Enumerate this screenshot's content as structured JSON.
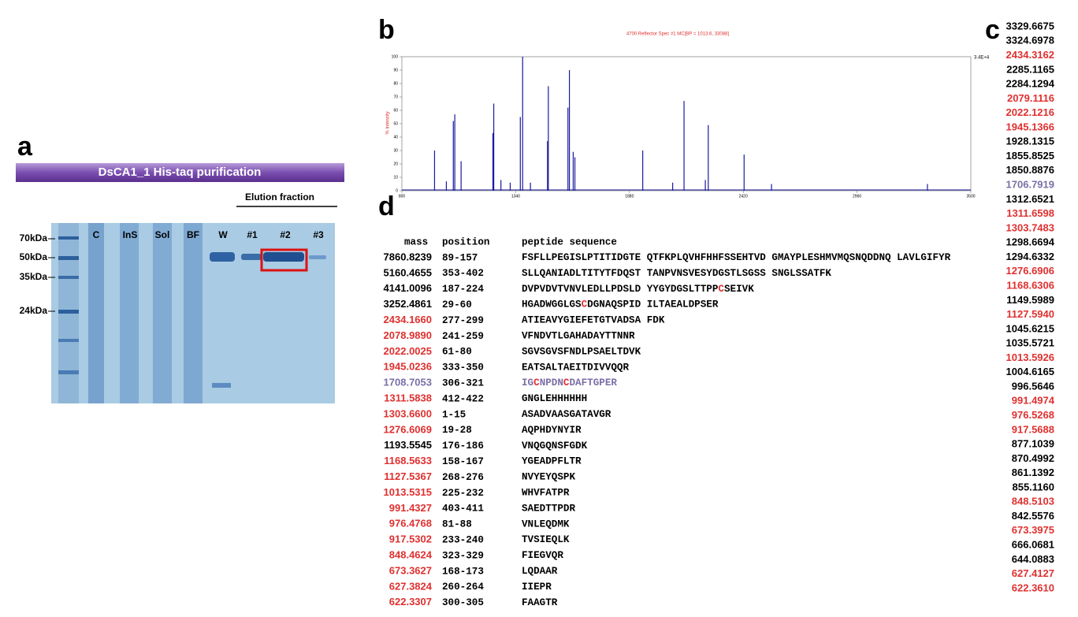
{
  "panel_a": {
    "label": "a",
    "title": "DsCA1_1 His-taq purification",
    "group_label": "Elution fraction",
    "lanes": [
      "C",
      "InS",
      "Sol",
      "BF",
      "W",
      "#1",
      "#2",
      "#3"
    ],
    "markers": [
      "70kDa",
      "50kDa",
      "35kDa",
      "24kDa"
    ]
  },
  "panel_b": {
    "label": "b",
    "type": "spectrum",
    "title": "4700 Reflector Spec #1 MC[BP = 1013.6, 33088]",
    "y_label": "% Intensity",
    "max_label": "3.4E+4",
    "color": "#1a1aa0",
    "xlim": [
      800,
      3500
    ],
    "xticks": [
      800,
      1340,
      1880,
      2420,
      2960,
      3500
    ],
    "ylim": [
      0,
      100
    ],
    "yticks": [
      0,
      10,
      20,
      30,
      40,
      50,
      60,
      70,
      80,
      90,
      100
    ],
    "peaks": [
      {
        "x": 955,
        "y": 30
      },
      {
        "x": 1011,
        "y": 7
      },
      {
        "x": 1044,
        "y": 52
      },
      {
        "x": 1051,
        "y": 57
      },
      {
        "x": 1081,
        "y": 22
      },
      {
        "x": 1232,
        "y": 43
      },
      {
        "x": 1236,
        "y": 65
      },
      {
        "x": 1270,
        "y": 8
      },
      {
        "x": 1314,
        "y": 6
      },
      {
        "x": 1362,
        "y": 55
      },
      {
        "x": 1373,
        "y": 100
      },
      {
        "x": 1410,
        "y": 6
      },
      {
        "x": 1491,
        "y": 37
      },
      {
        "x": 1495,
        "y": 78
      },
      {
        "x": 1588,
        "y": 62
      },
      {
        "x": 1595,
        "y": 90
      },
      {
        "x": 1613,
        "y": 29
      },
      {
        "x": 1621,
        "y": 25
      },
      {
        "x": 1943,
        "y": 30
      },
      {
        "x": 2085,
        "y": 6
      },
      {
        "x": 2139,
        "y": 67
      },
      {
        "x": 2240,
        "y": 8
      },
      {
        "x": 2254,
        "y": 49
      },
      {
        "x": 2424,
        "y": 27
      },
      {
        "x": 2554,
        "y": 5
      },
      {
        "x": 3294,
        "y": 5
      }
    ]
  },
  "panel_c": {
    "label": "c",
    "masses": [
      {
        "text": "3329.6675",
        "color": "black"
      },
      {
        "text": "3324.6978",
        "color": "black"
      },
      {
        "text": "2434.3162",
        "color": "red"
      },
      {
        "text": "2285.1165",
        "color": "black"
      },
      {
        "text": "2284.1294",
        "color": "black"
      },
      {
        "text": "2079.1116",
        "color": "red"
      },
      {
        "text": "2022.1216",
        "color": "red"
      },
      {
        "text": "1945.1366",
        "color": "red"
      },
      {
        "text": "1928.1315",
        "color": "black"
      },
      {
        "text": "1855.8525",
        "color": "black"
      },
      {
        "text": "1850.8876",
        "color": "black"
      },
      {
        "text": "1706.7919",
        "color": "purple"
      },
      {
        "text": "1312.6521",
        "color": "black"
      },
      {
        "text": "1311.6598",
        "color": "red"
      },
      {
        "text": "1303.7483",
        "color": "red"
      },
      {
        "text": "1298.6694",
        "color": "black"
      },
      {
        "text": "1294.6332",
        "color": "black"
      },
      {
        "text": "1276.6906",
        "color": "red"
      },
      {
        "text": "1168.6306",
        "color": "red"
      },
      {
        "text": "1149.5989",
        "color": "black"
      },
      {
        "text": "1127.5940",
        "color": "red"
      },
      {
        "text": "1045.6215",
        "color": "black"
      },
      {
        "text": "1035.5721",
        "color": "black"
      },
      {
        "text": "1013.5926",
        "color": "red"
      },
      {
        "text": "1004.6165",
        "color": "black"
      },
      {
        "text": "996.5646",
        "color": "black"
      },
      {
        "text": "991.4974",
        "color": "red"
      },
      {
        "text": "976.5268",
        "color": "red"
      },
      {
        "text": "917.5688",
        "color": "red"
      },
      {
        "text": "877.1039",
        "color": "black"
      },
      {
        "text": "870.4992",
        "color": "black"
      },
      {
        "text": "861.1392",
        "color": "black"
      },
      {
        "text": "855.1160",
        "color": "black"
      },
      {
        "text": "848.5103",
        "color": "red"
      },
      {
        "text": "842.5576",
        "color": "black"
      },
      {
        "text": "673.3975",
        "color": "red"
      },
      {
        "text": "666.0681",
        "color": "black"
      },
      {
        "text": "644.0883",
        "color": "black"
      },
      {
        "text": "627.4127",
        "color": "red"
      },
      {
        "text": "622.3610",
        "color": "red"
      }
    ]
  },
  "panel_d": {
    "label": "d",
    "headers": [
      "mass",
      "position",
      "peptide sequence"
    ],
    "rows": [
      {
        "mass": "7860.8239",
        "color": "black",
        "position": "89-157",
        "sequence": [
          {
            "text": "FSFLLPEGISLPTITIDGTE QTFKPLQVHFHHFSSEHTVD GMAYPLESHMVMQSNQDDNQ LAVLGIFYR",
            "color": "black"
          }
        ]
      },
      {
        "mass": "5160.4655",
        "color": "black",
        "position": "353-402",
        "sequence": [
          {
            "text": "SLLQANIADLTITYTFDQST TANPVNSVESYDGSTLSGSS SNGLSSATFK",
            "color": "black"
          }
        ]
      },
      {
        "mass": "4141.0096",
        "color": "black",
        "position": "187-224",
        "sequence": [
          {
            "text": "DVPVDVTVNVLEDLLPDSLD YYGYDGSLTTPP",
            "color": "black"
          },
          {
            "text": "C",
            "color": "red"
          },
          {
            "text": "SEIVK",
            "color": "black"
          }
        ]
      },
      {
        "mass": "3252.4861",
        "color": "black",
        "position": "29-60",
        "sequence": [
          {
            "text": "HGADWGGLGS",
            "color": "black"
          },
          {
            "text": "C",
            "color": "red"
          },
          {
            "text": "DGNAQSPID ILTAEALDPSER",
            "color": "black"
          }
        ]
      },
      {
        "mass": "2434.1660",
        "color": "red",
        "position": "277-299",
        "sequence": [
          {
            "text": "ATIEAVYGIEFETGTVADSA FDK",
            "color": "black"
          }
        ]
      },
      {
        "mass": "2078.9890",
        "color": "red",
        "position": "241-259",
        "sequence": [
          {
            "text": "VFNDVTLGAHADAYTTNNR",
            "color": "black"
          }
        ]
      },
      {
        "mass": "2022.0025",
        "color": "red",
        "position": "61-80",
        "sequence": [
          {
            "text": "SGVSGVSFNDLPSAELTDVK",
            "color": "black"
          }
        ]
      },
      {
        "mass": "1945.0236",
        "color": "red",
        "position": "333-350",
        "sequence": [
          {
            "text": "EATSALTAEITDIVVQQR",
            "color": "black"
          }
        ]
      },
      {
        "mass": "1708.7053",
        "color": "purple",
        "position": "306-321",
        "sequence": [
          {
            "text": "IG",
            "color": "purple"
          },
          {
            "text": "C",
            "color": "red"
          },
          {
            "text": "NPDN",
            "color": "purple"
          },
          {
            "text": "C",
            "color": "red"
          },
          {
            "text": "DAFTGPER",
            "color": "purple"
          }
        ]
      },
      {
        "mass": "1311.5838",
        "color": "red",
        "position": "412-422",
        "sequence": [
          {
            "text": "GNGLEHHHHHH",
            "color": "black"
          }
        ]
      },
      {
        "mass": "1303.6600",
        "color": "red",
        "position": "1-15",
        "sequence": [
          {
            "text": "ASADVAASGATAVGR",
            "color": "black"
          }
        ]
      },
      {
        "mass": "1276.6069",
        "color": "red",
        "position": "19-28",
        "sequence": [
          {
            "text": "AQPHDYNYIR",
            "color": "black"
          }
        ]
      },
      {
        "mass": "1193.5545",
        "color": "black",
        "position": "176-186",
        "sequence": [
          {
            "text": "VNQGQNSFGDK",
            "color": "black"
          }
        ]
      },
      {
        "mass": "1168.5633",
        "color": "red",
        "position": "158-167",
        "sequence": [
          {
            "text": "YGEADPFLTR",
            "color": "black"
          }
        ]
      },
      {
        "mass": "1127.5367",
        "color": "red",
        "position": "268-276",
        "sequence": [
          {
            "text": "NVYEYQSPK",
            "color": "black"
          }
        ]
      },
      {
        "mass": "1013.5315",
        "color": "red",
        "position": "225-232",
        "sequence": [
          {
            "text": "WHVFATPR",
            "color": "black"
          }
        ]
      },
      {
        "mass": "991.4327",
        "color": "red",
        "position": "403-411",
        "sequence": [
          {
            "text": "SAEDTTPDR",
            "color": "black"
          }
        ]
      },
      {
        "mass": "976.4768",
        "color": "red",
        "position": "81-88",
        "sequence": [
          {
            "text": "VNLEQDMK",
            "color": "black"
          }
        ]
      },
      {
        "mass": "917.5302",
        "color": "red",
        "position": "233-240",
        "sequence": [
          {
            "text": "TVSIEQLK",
            "color": "black"
          }
        ]
      },
      {
        "mass": "848.4624",
        "color": "red",
        "position": "323-329",
        "sequence": [
          {
            "text": "FIEGVQR",
            "color": "black"
          }
        ]
      },
      {
        "mass": "673.3627",
        "color": "red",
        "position": "168-173",
        "sequence": [
          {
            "text": "LQDAAR",
            "color": "black"
          }
        ]
      },
      {
        "mass": "627.3824",
        "color": "red",
        "position": "260-264",
        "sequence": [
          {
            "text": "IIEPR",
            "color": "black"
          }
        ]
      },
      {
        "mass": "622.3307",
        "color": "red",
        "position": "300-305",
        "sequence": [
          {
            "text": "FAAGTR",
            "color": "black"
          }
        ]
      }
    ]
  }
}
